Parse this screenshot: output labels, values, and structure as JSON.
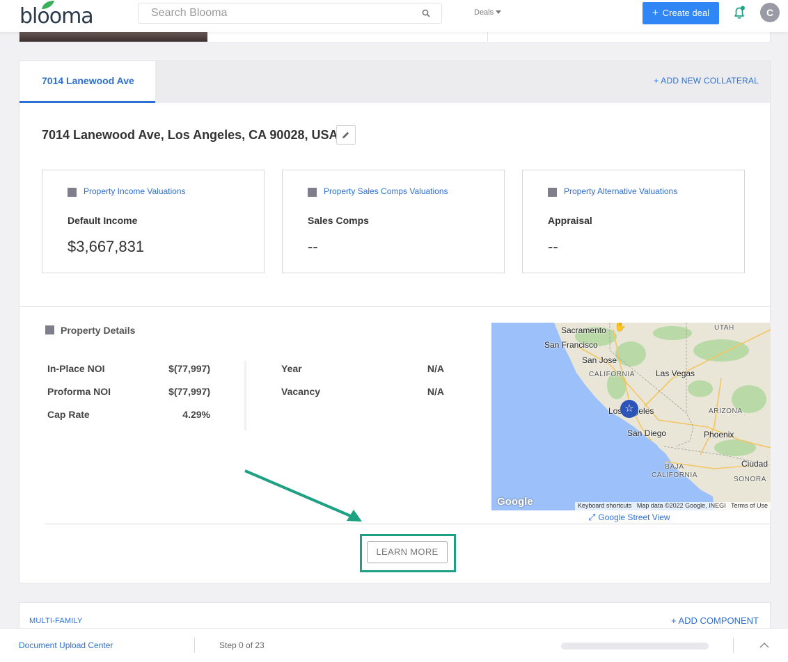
{
  "header": {
    "logo_text": "blooma",
    "search_placeholder": "Search Blooma",
    "deals_label": "Deals",
    "create_deal_label": "Create deal",
    "avatar_initial": "C"
  },
  "collateral": {
    "active_tab": "7014 Lanewood Ave",
    "add_collateral_label": "+ ADD NEW COLLATERAL",
    "address": "7014 Lanewood Ave, Los Angeles, CA 90028, USA",
    "valuations": [
      {
        "title": "Property Income Valuations",
        "label": "Default Income",
        "value": "$3,667,831"
      },
      {
        "title": "Property Sales Comps Valuations",
        "label": "Sales Comps",
        "value": "--"
      },
      {
        "title": "Property Alternative Valuations",
        "label": "Appraisal",
        "value": "--"
      }
    ]
  },
  "property_details": {
    "title": "Property Details",
    "left": [
      {
        "label": "In-Place NOI",
        "value": "$(77,997)"
      },
      {
        "label": "Proforma NOI",
        "value": "$(77,997)"
      },
      {
        "label": "Cap Rate",
        "value": "4.29%"
      }
    ],
    "right": [
      {
        "label": "Year",
        "value": "N/A"
      },
      {
        "label": "Vacancy",
        "value": "N/A"
      }
    ],
    "learn_more_label": "LEARN MORE",
    "street_view_label": "Google Street View"
  },
  "map": {
    "labels": {
      "sacramento": "Sacramento",
      "san_francisco": "San Francisco",
      "san_jose": "San Jose",
      "california": "CALIFORNIA",
      "las_vegas": "Las Vegas",
      "utah": "UTAH",
      "los_angeles": "Los Angeles",
      "arizona": "ARIZONA",
      "san_diego": "San Diego",
      "phoenix": "Phoenix",
      "baja_california": "BAJA CALIFORNIA",
      "ciudad": "Ciudad",
      "sonora": "SONORA"
    },
    "google": "Google",
    "footer": {
      "shortcuts": "Keyboard shortcuts",
      "data": "Map data ©2022 Google, INEGI",
      "terms": "Terms of Use"
    }
  },
  "component": {
    "type_label": "MULTI-FAMILY",
    "add_component_label": "+ ADD COMPONENT"
  },
  "footer": {
    "doc_center": "Document Upload Center",
    "step_text": "Step 0 of 23",
    "progress_fraction": 0
  },
  "colors": {
    "brand_blue": "#2d6fd2",
    "button_blue": "#2f86f4",
    "highlight_green": "#1ea183"
  }
}
